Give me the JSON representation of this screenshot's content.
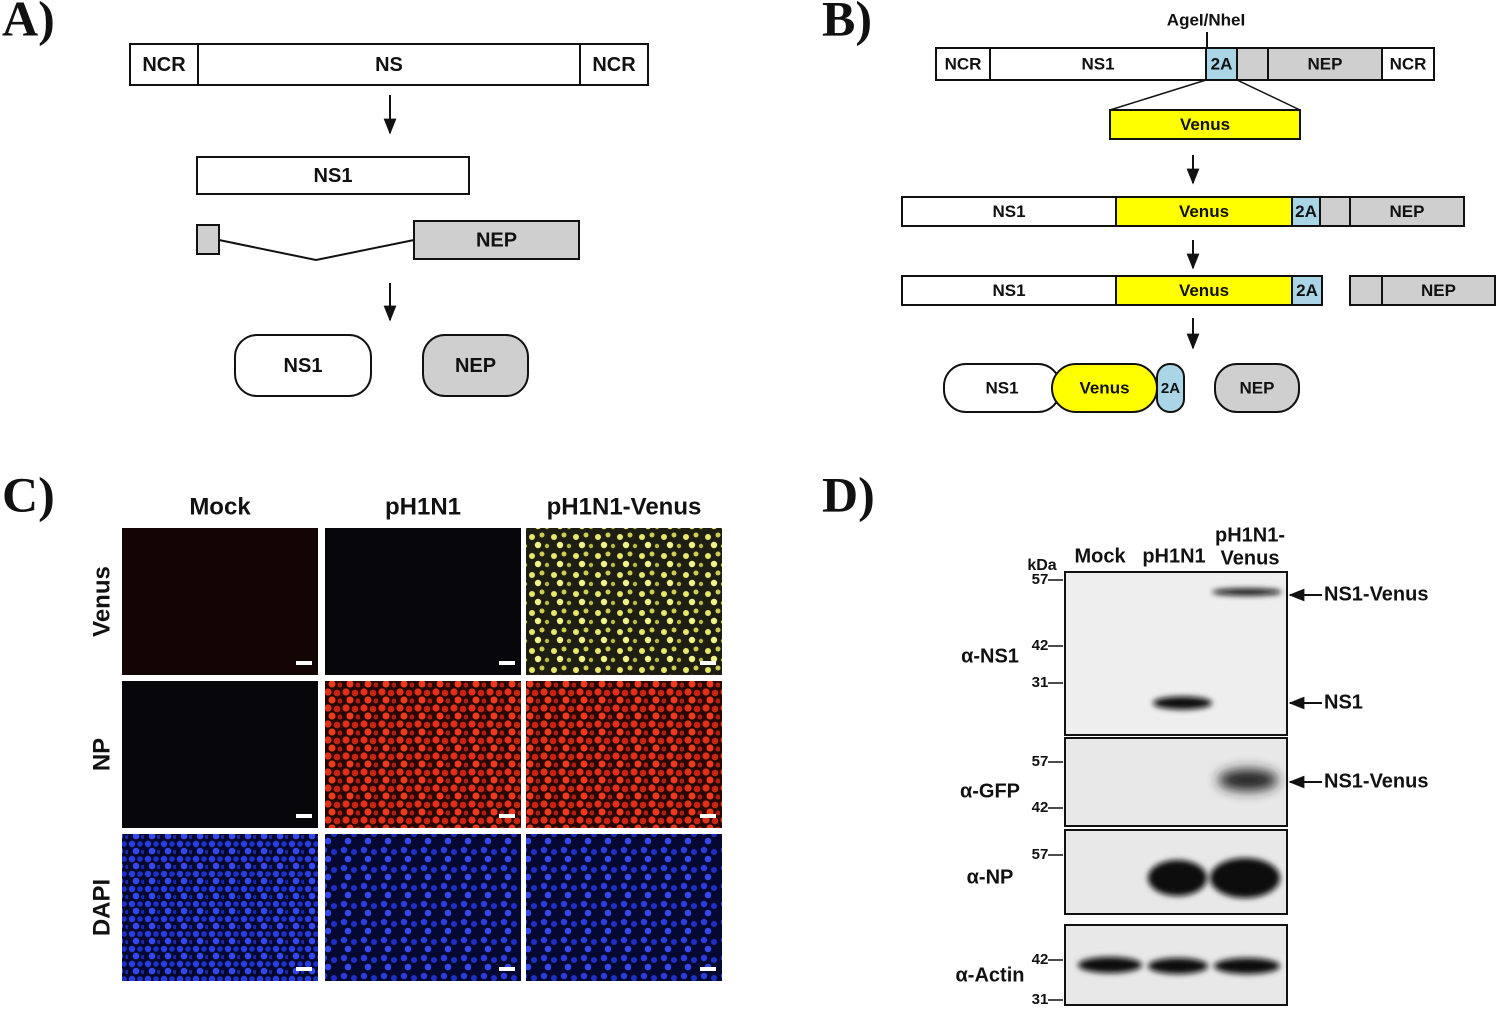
{
  "panel_a": {
    "label": "A)",
    "segment": [
      "NCR",
      "NS",
      "NCR"
    ],
    "ns1": "NS1",
    "nep": "NEP",
    "proteins": [
      "NS1",
      "NEP"
    ]
  },
  "panel_b": {
    "label": "B)",
    "site": "AgeI/NheI",
    "segment": [
      "NCR",
      "NS1",
      "2A",
      "NEP",
      "NCR"
    ],
    "insert": "Venus",
    "fusion": [
      "NS1",
      "Venus",
      "2A",
      "NEP"
    ],
    "cleaved": [
      "NS1",
      "Venus",
      "2A",
      "NEP"
    ],
    "proteins": [
      "NS1",
      "Venus",
      "2A",
      "NEP"
    ]
  },
  "panel_c": {
    "label": "C)",
    "columns": [
      "Mock",
      "pH1N1",
      "pH1N1-Venus"
    ],
    "rows": [
      "Venus",
      "NP",
      "DAPI"
    ]
  },
  "panel_d": {
    "label": "D)",
    "unit": "kDa",
    "lanes": [
      [
        "Mock"
      ],
      [
        "pH1N1"
      ],
      [
        "pH1N1-",
        "Venus"
      ]
    ],
    "blots": [
      {
        "antibody": "α-NS1",
        "markers": [
          57,
          42,
          31
        ]
      },
      {
        "antibody": "α-GFP",
        "markers": [
          57,
          42
        ]
      },
      {
        "antibody": "α-NP",
        "markers": [
          57
        ]
      },
      {
        "antibody": "α-Actin",
        "markers": [
          42,
          31
        ]
      }
    ],
    "band_labels": [
      "NS1-Venus",
      "NS1",
      "NS1-Venus"
    ]
  }
}
